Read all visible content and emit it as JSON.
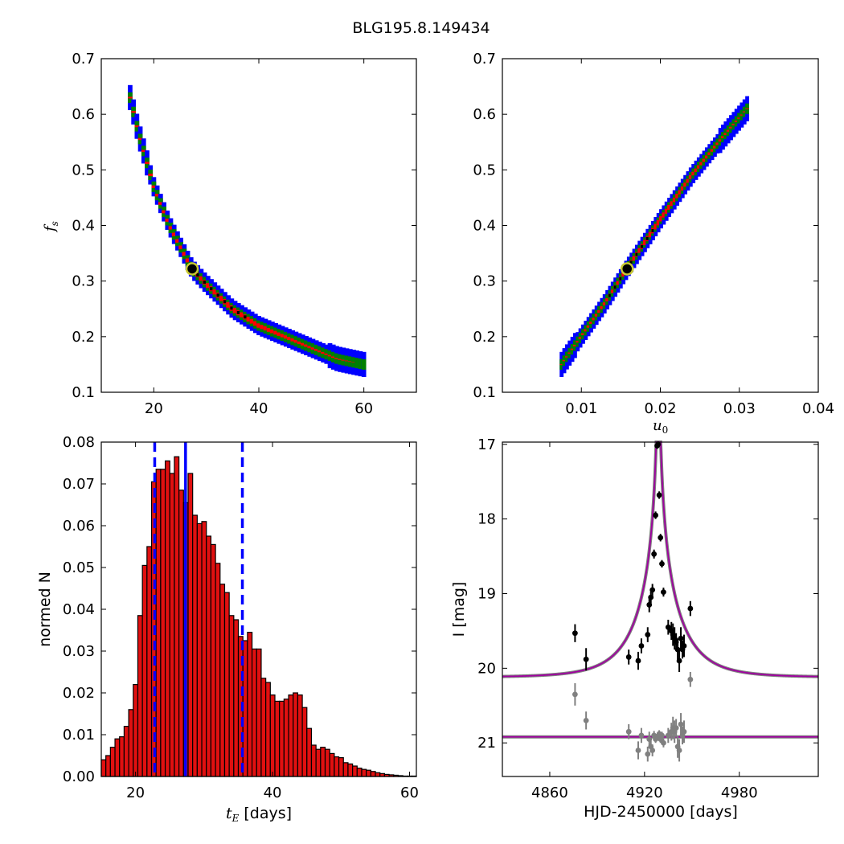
{
  "figure": {
    "title": "BLG195.8.149434"
  },
  "chart_data": [
    {
      "panel": "top-left",
      "type": "heatmap",
      "xlabel": "",
      "ylabel": "f_s",
      "xlim": [
        10,
        70
      ],
      "ylim": [
        0.1,
        0.7
      ],
      "xticks": [
        "20",
        "40",
        "60"
      ],
      "yticks": [
        "0.1",
        "0.2",
        "0.3",
        "0.4",
        "0.5",
        "0.6",
        "0.7"
      ],
      "levels": [
        "blue",
        "green",
        "red",
        "black"
      ],
      "colors": {
        "blue": "#0000ff",
        "green": "#008000",
        "red": "#ff0000",
        "black": "#000000",
        "marker_edge": "#c8c832"
      },
      "best_fit": {
        "x": 27.3,
        "y": 0.322
      },
      "ridge": [
        [
          15.5,
          0.63
        ],
        [
          17,
          0.57
        ],
        [
          20,
          0.47
        ],
        [
          23,
          0.4
        ],
        [
          27.3,
          0.322
        ],
        [
          30,
          0.295
        ],
        [
          35,
          0.25
        ],
        [
          40,
          0.22
        ],
        [
          45,
          0.2
        ],
        [
          50,
          0.18
        ],
        [
          55,
          0.16
        ],
        [
          60,
          0.15
        ]
      ]
    },
    {
      "panel": "top-right",
      "type": "heatmap",
      "xlabel": "u_0",
      "ylabel": "",
      "xlim": [
        0,
        0.04
      ],
      "ylim": [
        0.1,
        0.7
      ],
      "xticks": [
        "0.01",
        "0.02",
        "0.03",
        "0.04"
      ],
      "yticks": [
        "0.1",
        "0.2",
        "0.3",
        "0.4",
        "0.5",
        "0.6",
        "0.7"
      ],
      "levels": [
        "blue",
        "green",
        "red",
        "black"
      ],
      "colors": {
        "blue": "#0000ff",
        "green": "#008000",
        "red": "#ff0000",
        "black": "#000000",
        "marker_edge": "#c8c832"
      },
      "best_fit": {
        "x": 0.0158,
        "y": 0.322
      },
      "ridge": [
        [
          0.0075,
          0.15
        ],
        [
          0.01,
          0.2
        ],
        [
          0.013,
          0.26
        ],
        [
          0.0158,
          0.322
        ],
        [
          0.02,
          0.41
        ],
        [
          0.024,
          0.49
        ],
        [
          0.028,
          0.56
        ],
        [
          0.031,
          0.61
        ]
      ]
    },
    {
      "panel": "bottom-left",
      "type": "bar",
      "xlabel": "t_E [days]",
      "xlabel_math": "t",
      "xlabel_sub": "E",
      "xlabel_text": " [days]",
      "ylabel": "normed N",
      "xlim": [
        15,
        61
      ],
      "ylim": [
        0,
        0.08
      ],
      "xticks": [
        "20",
        "40",
        "60"
      ],
      "yticks": [
        "0.00",
        "0.01",
        "0.02",
        "0.03",
        "0.04",
        "0.05",
        "0.06",
        "0.07",
        "0.08"
      ],
      "bin_start": 15,
      "bin_width": 0.667,
      "values": [
        0.004,
        0.005,
        0.007,
        0.009,
        0.0095,
        0.012,
        0.016,
        0.022,
        0.0385,
        0.0505,
        0.055,
        0.0705,
        0.0735,
        0.0735,
        0.0755,
        0.0725,
        0.0765,
        0.0685,
        0.0655,
        0.0725,
        0.0625,
        0.0605,
        0.061,
        0.0575,
        0.0555,
        0.051,
        0.046,
        0.044,
        0.0385,
        0.0375,
        0.0335,
        0.0325,
        0.0345,
        0.0305,
        0.0305,
        0.0235,
        0.0225,
        0.0195,
        0.018,
        0.018,
        0.0185,
        0.0195,
        0.02,
        0.0195,
        0.0165,
        0.0115,
        0.0075,
        0.0065,
        0.007,
        0.0065,
        0.0055,
        0.0047,
        0.0045,
        0.0033,
        0.003,
        0.0025,
        0.002,
        0.0017,
        0.0015,
        0.0012,
        0.0009,
        0.0007,
        0.0005,
        0.0004,
        0.0003,
        0.0002,
        0.0001,
        0.0001,
        0.0001
      ],
      "bar_color": "#e01010",
      "vlines": [
        {
          "x": 22.8,
          "style": "dashed",
          "color": "#0000ff"
        },
        {
          "x": 27.3,
          "style": "solid",
          "color": "#0000ff"
        },
        {
          "x": 35.6,
          "style": "dashed",
          "color": "#0000ff"
        }
      ]
    },
    {
      "panel": "bottom-right",
      "type": "scatter",
      "xlabel": "HJD-2450000 [days]",
      "ylabel": "I [mag]",
      "xlim": [
        4830,
        5030
      ],
      "ylim": [
        21.45,
        16.97
      ],
      "xticks": [
        "4860",
        "4920",
        "4980"
      ],
      "yticks": [
        "17",
        "18",
        "19",
        "20",
        "21"
      ],
      "model": {
        "t0": 4928.8,
        "u0": 0.0158,
        "tE": 27.3,
        "baseline": 20.12
      },
      "residual_baseline": 20.92,
      "colors": {
        "data": "#000000",
        "residual": "#808080",
        "model": "#a000a0",
        "model_under": "#808080"
      },
      "data": [
        [
          4876,
          19.53,
          0.12
        ],
        [
          4883,
          19.88,
          0.15
        ],
        [
          4910,
          19.85,
          0.1
        ],
        [
          4916,
          19.9,
          0.12
        ],
        [
          4918,
          19.7,
          0.1
        ],
        [
          4922,
          19.55,
          0.1
        ],
        [
          4923,
          19.15,
          0.1
        ],
        [
          4924,
          19.05,
          0.08
        ],
        [
          4925,
          18.95,
          0.08
        ],
        [
          4926,
          18.47,
          0.06
        ],
        [
          4927,
          17.95,
          0.05
        ],
        [
          4928,
          17.02,
          0.04
        ],
        [
          4928.6,
          17.0,
          0.04
        ],
        [
          4929.3,
          17.68,
          0.05
        ],
        [
          4930.1,
          18.25,
          0.05
        ],
        [
          4931,
          18.6,
          0.05
        ],
        [
          4932,
          18.98,
          0.06
        ],
        [
          4935,
          19.45,
          0.1
        ],
        [
          4937,
          19.5,
          0.12
        ],
        [
          4938,
          19.55,
          0.15
        ],
        [
          4939,
          19.6,
          0.15
        ],
        [
          4940,
          19.65,
          0.12
        ],
        [
          4941,
          19.75,
          0.15
        ],
        [
          4942,
          19.9,
          0.15
        ],
        [
          4943,
          19.6,
          0.15
        ],
        [
          4944,
          19.75,
          0.12
        ],
        [
          4945,
          19.7,
          0.15
        ],
        [
          4949,
          19.2,
          0.1
        ]
      ],
      "residuals": [
        [
          4876,
          20.35,
          0.15
        ],
        [
          4883,
          20.7,
          0.12
        ],
        [
          4910,
          20.85,
          0.1
        ],
        [
          4916,
          21.1,
          0.12
        ],
        [
          4918,
          20.9,
          0.1
        ],
        [
          4922,
          21.15,
          0.1
        ],
        [
          4923,
          20.95,
          0.1
        ],
        [
          4924,
          21.05,
          0.08
        ],
        [
          4925,
          21.1,
          0.08
        ],
        [
          4926,
          20.9,
          0.06
        ],
        [
          4927,
          20.95,
          0.05
        ],
        [
          4928,
          20.92,
          0.04
        ],
        [
          4929.3,
          20.88,
          0.05
        ],
        [
          4930.1,
          20.95,
          0.05
        ],
        [
          4931,
          20.9,
          0.05
        ],
        [
          4932,
          21.0,
          0.06
        ],
        [
          4935,
          20.9,
          0.1
        ],
        [
          4937,
          20.85,
          0.12
        ],
        [
          4938,
          20.8,
          0.15
        ],
        [
          4939,
          20.85,
          0.15
        ],
        [
          4940,
          20.8,
          0.12
        ],
        [
          4941,
          21.05,
          0.15
        ],
        [
          4942,
          21.1,
          0.15
        ],
        [
          4943,
          20.75,
          0.15
        ],
        [
          4944,
          20.9,
          0.12
        ],
        [
          4945,
          20.85,
          0.15
        ],
        [
          4949,
          20.15,
          0.1
        ]
      ]
    }
  ]
}
